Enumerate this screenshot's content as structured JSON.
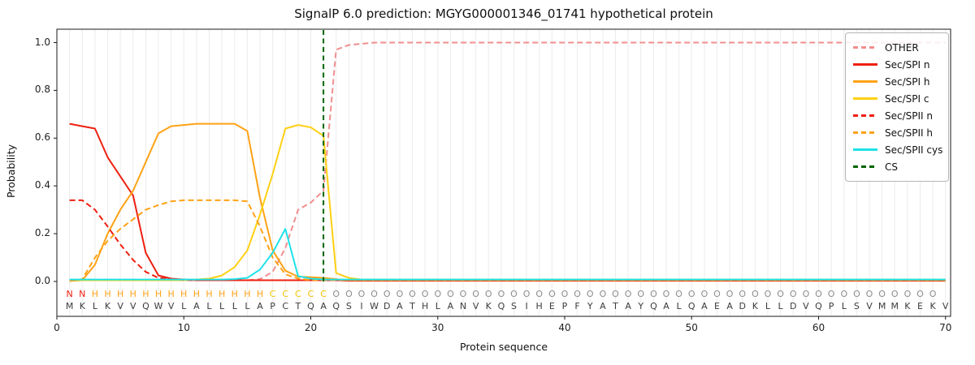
{
  "title": "SignalP 6.0 prediction: MGYG000001346_01741 hypothetical protein",
  "axes": {
    "ylabel": "Probability",
    "xlabel": "Protein sequence",
    "yticks": [
      "0.0",
      "0.2",
      "0.4",
      "0.6",
      "0.8",
      "1.0"
    ],
    "xticks": [
      "0",
      "10",
      "20",
      "30",
      "40",
      "50",
      "60",
      "70"
    ]
  },
  "chart_data": {
    "type": "line",
    "title": "SignalP 6.0 prediction: MGYG000001346_01741 hypothetical protein",
    "xlabel": "Protein sequence",
    "ylabel": "Probability",
    "x_unit": "residue position 1-70",
    "xlim": [
      0,
      70.4
    ],
    "ylim": [
      -0.15,
      1.06
    ],
    "grid": "vertical line at every residue",
    "legend_position": "upper right",
    "series": [
      {
        "name": "OTHER",
        "color": "#f18e8e",
        "dash": true,
        "values": [
          0.005,
          0.005,
          0.005,
          0.005,
          0.005,
          0.005,
          0.005,
          0.005,
          0.005,
          0.005,
          0.005,
          0.005,
          0.005,
          0.005,
          0.005,
          0.01,
          0.04,
          0.14,
          0.3,
          0.33,
          0.38,
          0.97,
          0.99,
          0.995,
          1.0,
          1.0,
          1.0,
          1.0,
          1.0,
          1.0,
          1.0,
          1.0,
          1.0,
          1.0,
          1.0,
          1.0,
          1.0,
          1.0,
          1.0,
          1.0,
          1.0,
          1.0,
          1.0,
          1.0,
          1.0,
          1.0,
          1.0,
          1.0,
          1.0,
          1.0,
          1.0,
          1.0,
          1.0,
          1.0,
          1.0,
          1.0,
          1.0,
          1.0,
          1.0,
          1.0,
          1.0,
          1.0,
          1.0,
          1.0,
          1.0,
          1.0,
          1.0,
          1.0,
          1.0,
          1.0
        ]
      },
      {
        "name": "Sec/SPI n",
        "color": "#ee2010",
        "dash": false,
        "values": [
          0.66,
          0.65,
          0.64,
          0.52,
          0.44,
          0.36,
          0.12,
          0.025,
          0.012,
          0.008,
          0.005,
          0.005,
          0.005,
          0.005,
          0.005,
          0.005,
          0.005,
          0.005,
          0.005,
          0.005,
          0.005,
          0.005,
          0.003,
          0.003,
          0.003,
          0.003,
          0.003,
          0.003,
          0.003,
          0.003,
          0.003,
          0.003,
          0.003,
          0.003,
          0.003,
          0.003,
          0.003,
          0.003,
          0.003,
          0.003,
          0.003,
          0.003,
          0.003,
          0.003,
          0.003,
          0.003,
          0.003,
          0.003,
          0.003,
          0.003,
          0.003,
          0.003,
          0.003,
          0.003,
          0.003,
          0.003,
          0.003,
          0.003,
          0.003,
          0.003,
          0.003,
          0.003,
          0.003,
          0.003,
          0.003,
          0.003,
          0.003,
          0.003,
          0.003,
          0.003
        ]
      },
      {
        "name": "Sec/SPI h",
        "color": "#ffa216",
        "dash": false,
        "values": [
          0.002,
          0.005,
          0.07,
          0.2,
          0.3,
          0.38,
          0.5,
          0.62,
          0.65,
          0.655,
          0.66,
          0.66,
          0.66,
          0.66,
          0.63,
          0.35,
          0.13,
          0.045,
          0.02,
          0.018,
          0.015,
          0.01,
          0.005,
          0.005,
          0.005,
          0.005,
          0.005,
          0.005,
          0.005,
          0.005,
          0.005,
          0.005,
          0.005,
          0.005,
          0.005,
          0.005,
          0.005,
          0.005,
          0.005,
          0.005,
          0.005,
          0.005,
          0.005,
          0.005,
          0.005,
          0.005,
          0.005,
          0.005,
          0.005,
          0.005,
          0.005,
          0.005,
          0.005,
          0.005,
          0.005,
          0.005,
          0.005,
          0.005,
          0.005,
          0.005,
          0.005,
          0.005,
          0.005,
          0.005,
          0.005,
          0.005,
          0.005,
          0.005,
          0.005,
          0.005
        ]
      },
      {
        "name": "Sec/SPI c",
        "color": "#ffd012",
        "dash": false,
        "values": [
          0.005,
          0.005,
          0.005,
          0.005,
          0.005,
          0.005,
          0.005,
          0.005,
          0.005,
          0.005,
          0.008,
          0.012,
          0.025,
          0.06,
          0.13,
          0.28,
          0.45,
          0.64,
          0.655,
          0.645,
          0.61,
          0.035,
          0.015,
          0.008,
          0.008,
          0.008,
          0.008,
          0.008,
          0.008,
          0.008,
          0.008,
          0.008,
          0.008,
          0.008,
          0.008,
          0.008,
          0.008,
          0.008,
          0.008,
          0.008,
          0.008,
          0.008,
          0.008,
          0.008,
          0.008,
          0.008,
          0.008,
          0.008,
          0.008,
          0.008,
          0.008,
          0.008,
          0.008,
          0.008,
          0.008,
          0.008,
          0.008,
          0.008,
          0.008,
          0.008,
          0.008,
          0.008,
          0.008,
          0.008,
          0.008,
          0.008,
          0.008,
          0.008,
          0.008,
          0.008
        ]
      },
      {
        "name": "Sec/SPII n",
        "color": "#ee2010",
        "dash": true,
        "values": [
          0.34,
          0.34,
          0.3,
          0.23,
          0.155,
          0.09,
          0.04,
          0.015,
          0.01,
          0.007,
          0.005,
          0.005,
          0.005,
          0.005,
          0.005,
          0.005,
          0.005,
          0.005,
          0.005,
          0.005,
          0.005,
          0.005,
          0.005,
          0.005,
          0.005,
          0.005,
          0.005,
          0.005,
          0.005,
          0.005,
          0.005,
          0.005,
          0.005,
          0.005,
          0.005,
          0.005,
          0.005,
          0.005,
          0.005,
          0.005,
          0.005,
          0.005,
          0.005,
          0.005,
          0.005,
          0.005,
          0.005,
          0.005,
          0.005,
          0.005,
          0.005,
          0.005,
          0.005,
          0.005,
          0.005,
          0.005,
          0.005,
          0.005,
          0.005,
          0.005,
          0.005,
          0.005,
          0.005,
          0.005,
          0.005,
          0.005,
          0.005,
          0.005,
          0.005,
          0.005
        ]
      },
      {
        "name": "Sec/SPII h",
        "color": "#ffa216",
        "dash": true,
        "values": [
          0.002,
          0.01,
          0.1,
          0.17,
          0.22,
          0.26,
          0.3,
          0.32,
          0.335,
          0.34,
          0.34,
          0.34,
          0.34,
          0.34,
          0.335,
          0.23,
          0.1,
          0.03,
          0.012,
          0.006,
          0.006,
          0.006,
          0.006,
          0.006,
          0.006,
          0.006,
          0.006,
          0.006,
          0.006,
          0.006,
          0.006,
          0.006,
          0.006,
          0.006,
          0.006,
          0.006,
          0.006,
          0.006,
          0.006,
          0.006,
          0.006,
          0.006,
          0.006,
          0.006,
          0.006,
          0.006,
          0.006,
          0.006,
          0.006,
          0.006,
          0.006,
          0.006,
          0.006,
          0.006,
          0.006,
          0.006,
          0.006,
          0.006,
          0.006,
          0.006,
          0.006,
          0.006,
          0.006,
          0.006,
          0.006,
          0.006,
          0.006,
          0.006,
          0.006,
          0.006
        ]
      },
      {
        "name": "Sec/SPII cys",
        "color": "#1ce2e9",
        "dash": false,
        "values": [
          0.008,
          0.008,
          0.008,
          0.008,
          0.008,
          0.008,
          0.008,
          0.008,
          0.008,
          0.008,
          0.008,
          0.008,
          0.008,
          0.01,
          0.015,
          0.05,
          0.12,
          0.22,
          0.022,
          0.012,
          0.008,
          0.008,
          0.008,
          0.008,
          0.008,
          0.008,
          0.008,
          0.008,
          0.008,
          0.008,
          0.008,
          0.008,
          0.008,
          0.008,
          0.008,
          0.008,
          0.008,
          0.008,
          0.008,
          0.008,
          0.008,
          0.008,
          0.008,
          0.008,
          0.008,
          0.008,
          0.008,
          0.008,
          0.008,
          0.008,
          0.008,
          0.008,
          0.008,
          0.008,
          0.008,
          0.008,
          0.008,
          0.008,
          0.008,
          0.008,
          0.008,
          0.008,
          0.008,
          0.008,
          0.008,
          0.008,
          0.008,
          0.008,
          0.008,
          0.008
        ]
      }
    ],
    "cs_line": {
      "name": "CS",
      "color": "#006400",
      "dash": true,
      "x": 21
    }
  },
  "sequence_track": {
    "regions": "NNHHHHHHHHHHHHHHCCCCCOOOOOOOOOOOOOOOOOOOOOOOOOOOOOOOOOOOOOOOOOOOOOOOO",
    "residues": "MKLKVVQWVLALLLLAPCTQAQSIWDATHLANVKQSIHEPFYATAYQALQAEADKLLDVQPLSVMMKEKV",
    "region_colors": {
      "N": "#ee2010",
      "H": "#ffa216",
      "C": "#f2c400",
      "O": "#8d8d8d"
    },
    "residue_color": "#3d3d3d"
  },
  "style": {
    "grid_color": "#ededed",
    "spine_color": "#1a1a1a",
    "background": "#ffffff"
  }
}
